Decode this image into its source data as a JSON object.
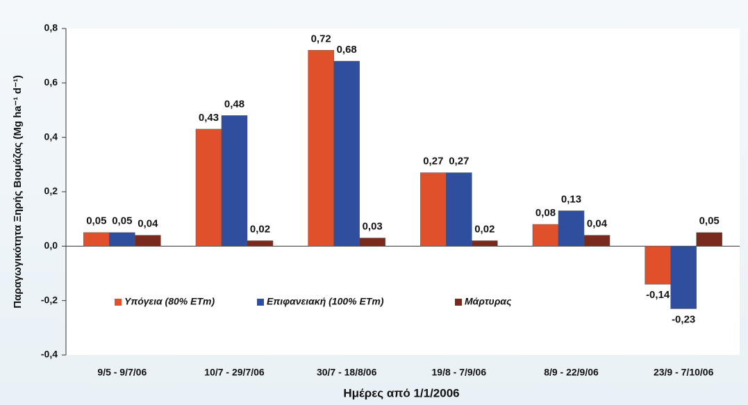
{
  "chart_data": {
    "type": "bar",
    "categories": [
      "9/5 - 9/7/06",
      "10/7 - 29/7/06",
      "30/7 - 18/8/06",
      "19/8 - 7/9/06",
      "8/9 - 22/9/06",
      "23/9 - 7/10/06"
    ],
    "series": [
      {
        "name": "Υπόγεια (80% ETm)",
        "color": "#e0502a",
        "values": [
          0.05,
          0.43,
          0.72,
          0.27,
          0.08,
          -0.14
        ],
        "value_labels": [
          "0,05",
          "0,43",
          "0,72",
          "0,27",
          "0,08",
          "-0,14"
        ]
      },
      {
        "name": "Επιφανειακή (100% ETm)",
        "color": "#2f4f9e",
        "values": [
          0.05,
          0.48,
          0.68,
          0.27,
          0.13,
          -0.23
        ],
        "value_labels": [
          "0,05",
          "0,48",
          "0,68",
          "0,27",
          "0,13",
          "-0,23"
        ]
      },
      {
        "name": "Μάρτυρας",
        "color": "#7a2a1c",
        "values": [
          0.04,
          0.02,
          0.03,
          0.02,
          0.04,
          0.05
        ],
        "value_labels": [
          "0,04",
          "0,02",
          "0,03",
          "0,02",
          "0,04",
          "0,05"
        ]
      }
    ],
    "ylim": [
      -0.4,
      0.8
    ],
    "yticks": [
      {
        "value": -0.4,
        "label": "-0,4"
      },
      {
        "value": -0.2,
        "label": "-0,2"
      },
      {
        "value": 0,
        "label": "0,0"
      },
      {
        "value": 0.2,
        "label": "0,2"
      },
      {
        "value": 0.4,
        "label": "0,4"
      },
      {
        "value": 0.6,
        "label": "0,6"
      },
      {
        "value": 0.8,
        "label": "0,8"
      }
    ],
    "xlabel": "Ημέρες από 1/1/2006",
    "ylabel": "Παραγωγικότητα Ξηρής Βιομάζας (Mg ha⁻¹ d⁻¹)",
    "grid": false,
    "legend": "lower-left"
  }
}
